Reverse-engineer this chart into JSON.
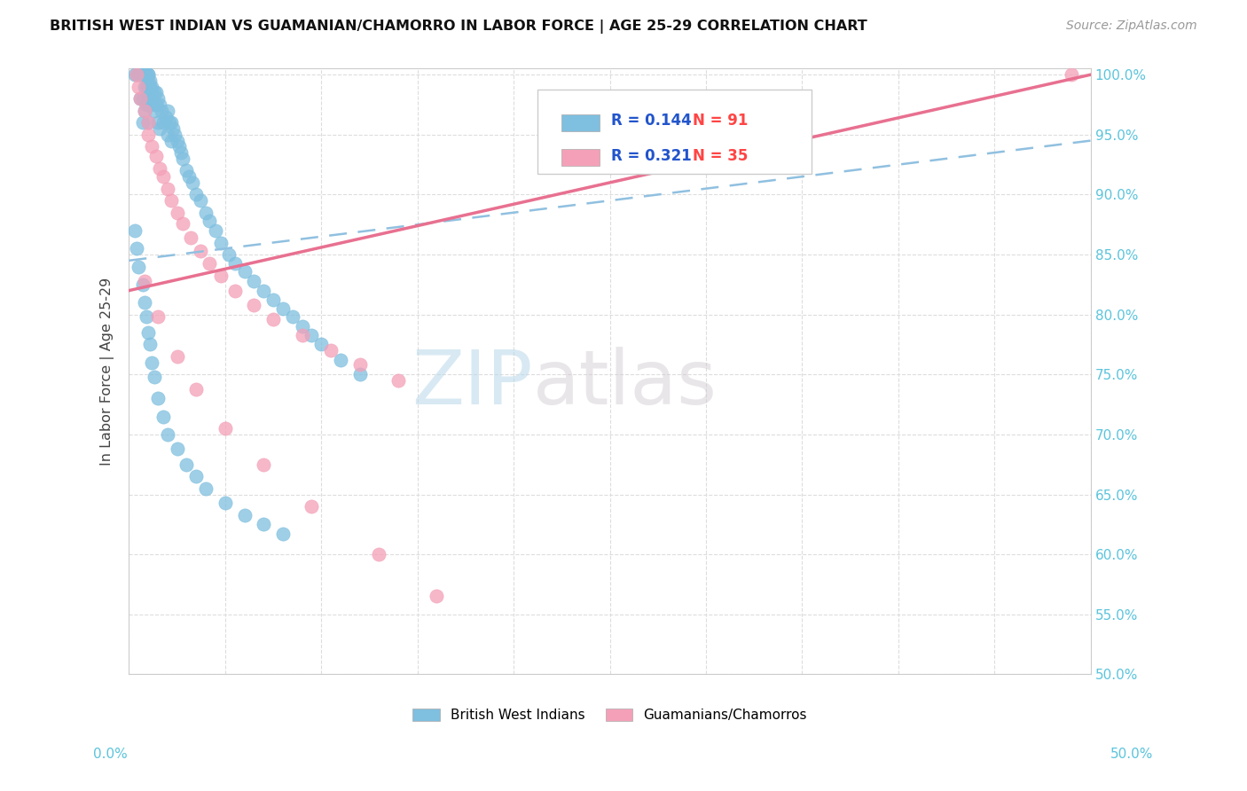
{
  "title": "BRITISH WEST INDIAN VS GUAMANIAN/CHAMORRO IN LABOR FORCE | AGE 25-29 CORRELATION CHART",
  "source": "Source: ZipAtlas.com",
  "ylabel": "In Labor Force | Age 25-29",
  "legend1_label": "British West Indians",
  "legend2_label": "Guamanians/Chamorros",
  "r1": 0.144,
  "n1": 91,
  "r2": 0.321,
  "n2": 35,
  "color_blue": "#7fbfdf",
  "color_pink": "#f4a0b8",
  "watermark_zip": "ZIP",
  "watermark_atlas": "atlas",
  "xlim": [
    0.0,
    0.5
  ],
  "ylim": [
    0.5,
    1.005
  ],
  "blue_x": [
    0.003,
    0.004,
    0.005,
    0.006,
    0.006,
    0.007,
    0.007,
    0.007,
    0.008,
    0.008,
    0.008,
    0.009,
    0.009,
    0.009,
    0.01,
    0.01,
    0.01,
    0.01,
    0.01,
    0.01,
    0.01,
    0.011,
    0.011,
    0.011,
    0.012,
    0.012,
    0.013,
    0.013,
    0.014,
    0.014,
    0.015,
    0.015,
    0.016,
    0.016,
    0.017,
    0.018,
    0.019,
    0.02,
    0.02,
    0.021,
    0.022,
    0.022,
    0.023,
    0.024,
    0.025,
    0.026,
    0.027,
    0.028,
    0.03,
    0.031,
    0.033,
    0.035,
    0.037,
    0.04,
    0.042,
    0.045,
    0.048,
    0.052,
    0.055,
    0.06,
    0.065,
    0.07,
    0.075,
    0.08,
    0.085,
    0.09,
    0.095,
    0.1,
    0.11,
    0.12,
    0.003,
    0.004,
    0.005,
    0.007,
    0.008,
    0.009,
    0.01,
    0.011,
    0.012,
    0.013,
    0.015,
    0.018,
    0.02,
    0.025,
    0.03,
    0.035,
    0.04,
    0.05,
    0.06,
    0.07,
    0.08
  ],
  "blue_y": [
    1.0,
    1.0,
    1.0,
    1.0,
    0.98,
    1.0,
    0.98,
    0.96,
    1.0,
    0.99,
    0.97,
    1.0,
    0.99,
    0.975,
    1.0,
    1.0,
    0.995,
    0.99,
    0.985,
    0.98,
    0.96,
    0.995,
    0.99,
    0.975,
    0.99,
    0.98,
    0.985,
    0.97,
    0.985,
    0.975,
    0.98,
    0.96,
    0.975,
    0.955,
    0.97,
    0.96,
    0.965,
    0.97,
    0.95,
    0.96,
    0.96,
    0.945,
    0.955,
    0.95,
    0.945,
    0.94,
    0.935,
    0.93,
    0.92,
    0.915,
    0.91,
    0.9,
    0.895,
    0.885,
    0.878,
    0.87,
    0.86,
    0.85,
    0.843,
    0.836,
    0.828,
    0.82,
    0.812,
    0.805,
    0.798,
    0.79,
    0.783,
    0.775,
    0.762,
    0.75,
    0.87,
    0.855,
    0.84,
    0.825,
    0.81,
    0.798,
    0.785,
    0.775,
    0.76,
    0.748,
    0.73,
    0.715,
    0.7,
    0.688,
    0.675,
    0.665,
    0.655,
    0.643,
    0.633,
    0.625,
    0.617
  ],
  "pink_x": [
    0.004,
    0.005,
    0.006,
    0.008,
    0.01,
    0.01,
    0.012,
    0.014,
    0.016,
    0.018,
    0.02,
    0.022,
    0.025,
    0.028,
    0.032,
    0.037,
    0.042,
    0.048,
    0.055,
    0.065,
    0.075,
    0.09,
    0.105,
    0.12,
    0.14,
    0.008,
    0.015,
    0.025,
    0.035,
    0.05,
    0.07,
    0.095,
    0.13,
    0.16,
    0.49
  ],
  "pink_y": [
    1.0,
    0.99,
    0.98,
    0.97,
    0.96,
    0.95,
    0.94,
    0.932,
    0.922,
    0.915,
    0.905,
    0.895,
    0.885,
    0.876,
    0.864,
    0.853,
    0.843,
    0.832,
    0.82,
    0.808,
    0.796,
    0.783,
    0.77,
    0.758,
    0.745,
    0.828,
    0.798,
    0.765,
    0.738,
    0.705,
    0.675,
    0.64,
    0.6,
    0.565,
    1.0
  ]
}
